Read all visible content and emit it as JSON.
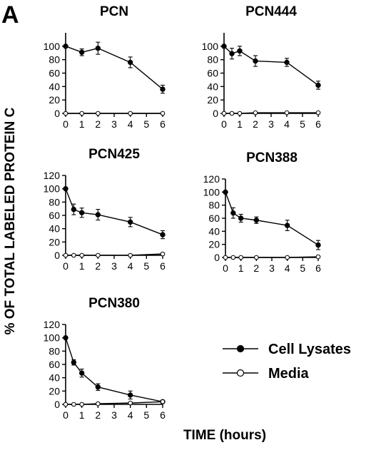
{
  "figure": {
    "panel_label": "A",
    "ylabel": "% OF TOTAL LABELED PROTEIN C",
    "xlabel": "TIME (hours)"
  },
  "legend": {
    "items": [
      {
        "label": "Cell Lysates",
        "marker": "filled-circle"
      },
      {
        "label": "Media",
        "marker": "open-circle"
      }
    ]
  },
  "chart_data": [
    {
      "type": "line",
      "title": "PCN",
      "xlim": [
        0,
        6
      ],
      "ylim": [
        0,
        120
      ],
      "xticks": [
        0,
        1,
        2,
        3,
        4,
        5,
        6
      ],
      "yticks": [
        0,
        20,
        40,
        60,
        80,
        100
      ],
      "series": [
        {
          "name": "Cell Lysates",
          "x": [
            0,
            1,
            2,
            4,
            6
          ],
          "y": [
            100,
            91,
            97,
            76,
            36
          ],
          "err": [
            0,
            5,
            9,
            8,
            6
          ]
        },
        {
          "name": "Media",
          "x": [
            0,
            1,
            2,
            4,
            6
          ],
          "y": [
            0,
            0,
            0,
            0,
            0
          ],
          "err": [
            0,
            0,
            0,
            0,
            0
          ]
        }
      ]
    },
    {
      "type": "line",
      "title": "PCN444",
      "xlim": [
        0,
        6
      ],
      "ylim": [
        0,
        120
      ],
      "xticks": [
        0,
        1,
        2,
        3,
        4,
        5,
        6
      ],
      "yticks": [
        0,
        20,
        40,
        60,
        80,
        100
      ],
      "series": [
        {
          "name": "Cell Lysates",
          "x": [
            0,
            0.5,
            1,
            2,
            4,
            6
          ],
          "y": [
            100,
            89,
            93,
            78,
            76,
            42
          ],
          "err": [
            0,
            8,
            7,
            8,
            6,
            6
          ]
        },
        {
          "name": "Media",
          "x": [
            0,
            0.5,
            1,
            2,
            4,
            6
          ],
          "y": [
            0,
            0,
            0,
            1,
            1,
            1
          ],
          "err": [
            0,
            0,
            0,
            0,
            0,
            0
          ]
        }
      ]
    },
    {
      "type": "line",
      "title": "PCN425",
      "xlim": [
        0,
        6
      ],
      "ylim": [
        0,
        120
      ],
      "xticks": [
        0,
        1,
        2,
        3,
        4,
        5,
        6
      ],
      "yticks": [
        0,
        20,
        40,
        60,
        80,
        100,
        120
      ],
      "series": [
        {
          "name": "Cell Lysates",
          "x": [
            0,
            0.5,
            1,
            2,
            4,
            6
          ],
          "y": [
            100,
            69,
            64,
            61,
            50,
            31
          ],
          "err": [
            0,
            8,
            7,
            8,
            7,
            6
          ]
        },
        {
          "name": "Media",
          "x": [
            0,
            0.5,
            1,
            2,
            4,
            6
          ],
          "y": [
            0,
            0,
            0,
            0,
            0,
            2
          ],
          "err": [
            0,
            0,
            0,
            0,
            0,
            0
          ]
        }
      ]
    },
    {
      "type": "line",
      "title": "PCN388",
      "xlim": [
        0,
        6
      ],
      "ylim": [
        0,
        120
      ],
      "xticks": [
        0,
        1,
        2,
        3,
        4,
        5,
        6
      ],
      "yticks": [
        0,
        20,
        40,
        60,
        80,
        100,
        120
      ],
      "series": [
        {
          "name": "Cell Lysates",
          "x": [
            0,
            0.5,
            1,
            2,
            4,
            6
          ],
          "y": [
            100,
            68,
            60,
            57,
            49,
            19
          ],
          "err": [
            0,
            8,
            6,
            5,
            8,
            7
          ]
        },
        {
          "name": "Media",
          "x": [
            0,
            0.5,
            1,
            2,
            4,
            6
          ],
          "y": [
            0,
            0,
            0,
            0,
            0,
            1
          ],
          "err": [
            0,
            0,
            0,
            0,
            0,
            0
          ]
        }
      ]
    },
    {
      "type": "line",
      "title": "PCN380",
      "xlim": [
        0,
        6
      ],
      "ylim": [
        0,
        120
      ],
      "xticks": [
        0,
        1,
        2,
        3,
        4,
        5,
        6
      ],
      "yticks": [
        0,
        20,
        40,
        60,
        80,
        100,
        120
      ],
      "series": [
        {
          "name": "Cell Lysates",
          "x": [
            0,
            0.5,
            1,
            2,
            4,
            6
          ],
          "y": [
            100,
            63,
            47,
            26,
            14,
            4
          ],
          "err": [
            0,
            4,
            6,
            5,
            6,
            2
          ]
        },
        {
          "name": "Media",
          "x": [
            0,
            0.5,
            1,
            2,
            4,
            6
          ],
          "y": [
            0,
            0,
            0,
            1,
            2,
            4
          ],
          "err": [
            0,
            0,
            0,
            0,
            0,
            0
          ]
        }
      ]
    }
  ]
}
